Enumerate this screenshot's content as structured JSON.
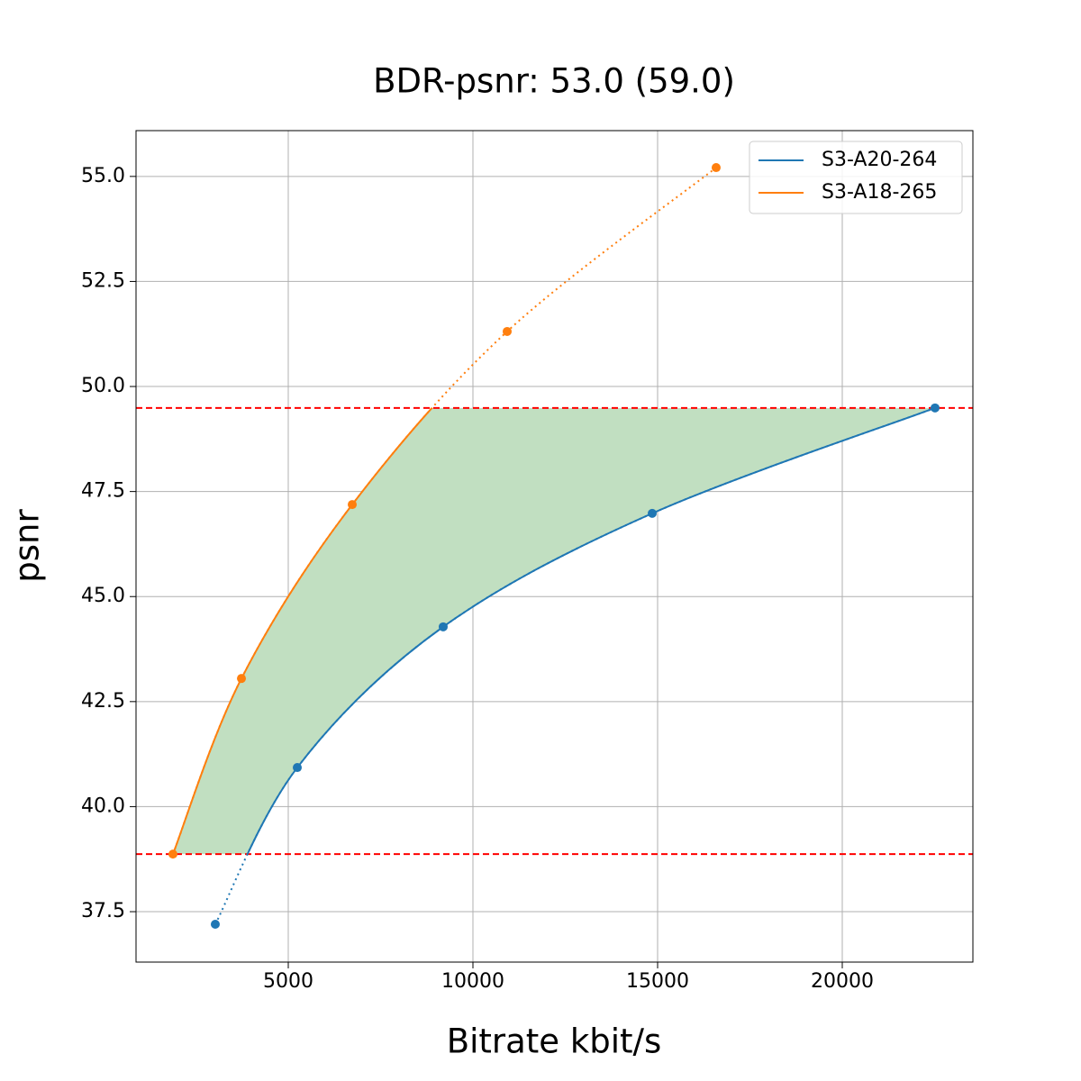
{
  "chart_data": {
    "type": "line",
    "title": "BDR-psnr: 53.0 (59.0)",
    "x_label": "Bitrate kbit/s",
    "y_label": "psnr",
    "xlim": [
      878,
      23537
    ],
    "ylim": [
      36.3,
      56.09
    ],
    "xticks": [
      5000,
      10000,
      15000,
      20000
    ],
    "yticks": [
      37.5,
      {
        "value": 40,
        "label": "40.0"
      },
      42.5,
      {
        "value": 45,
        "label": "45.0"
      },
      47.5,
      {
        "value": 50,
        "label": "50.0"
      },
      52.5,
      {
        "value": 55,
        "label": "55.0"
      }
    ],
    "grid": true,
    "legend": "upper right",
    "series": [
      {
        "name": "S3-A20-264",
        "color": "#1f77b4",
        "x": [
          3024,
          5244,
          9195,
          14854,
          22512
        ],
        "values": [
          37.2,
          40.93,
          44.28,
          46.98,
          49.49
        ]
      },
      {
        "name": "S3-A18-265",
        "color": "#ff7f0e",
        "x": [
          1878,
          3732,
          6732,
          10927,
          16585
        ],
        "values": [
          38.87,
          43.05,
          47.19,
          51.31,
          55.21
        ]
      }
    ],
    "reference_lines": {
      "values": [
        38.87,
        49.49
      ],
      "color": "#ff0000"
    },
    "fill_color": "#c1dfc1"
  }
}
